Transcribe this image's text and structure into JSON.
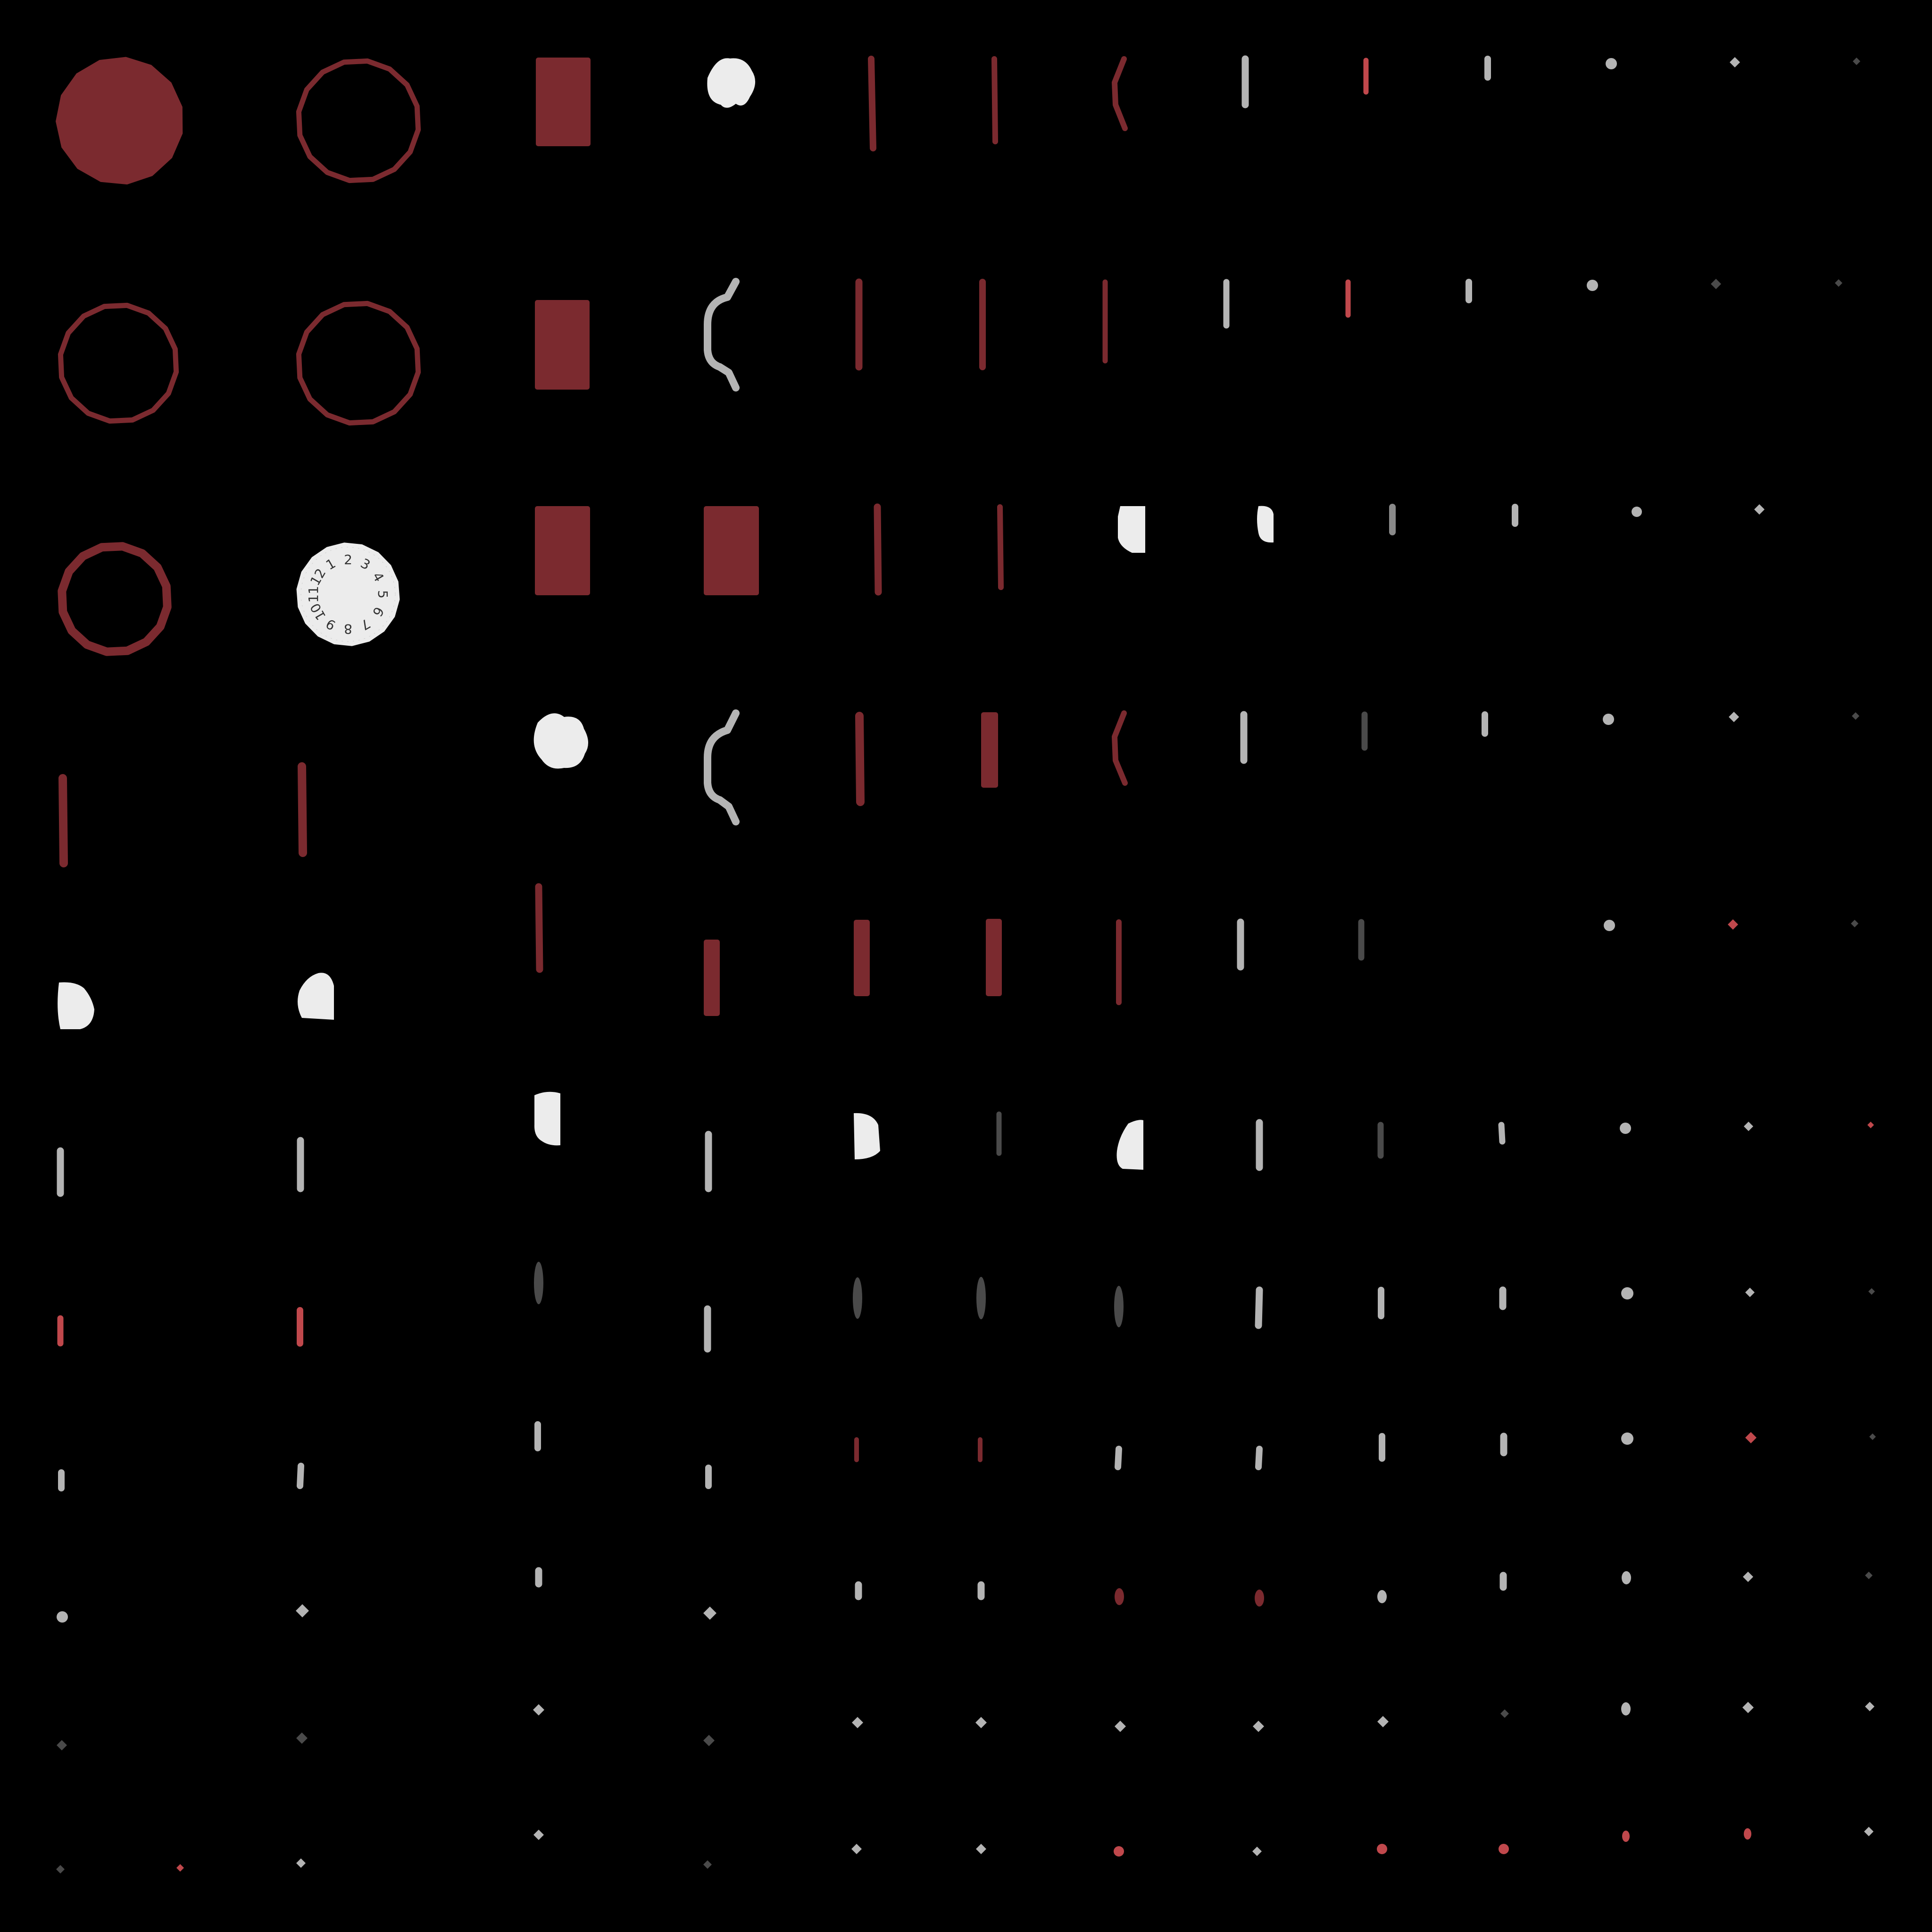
{
  "scene": {
    "description_label": "",
    "background": "#000000"
  },
  "palette": {
    "dark_red": "#7b2a2f",
    "light_red": "#c0484c",
    "white": "#ececec",
    "light_gray": "#b4b4b4",
    "mid_gray": "#8a8a8a",
    "dark_gray": "#4a4a4a"
  },
  "dial": {
    "numbers": [
      "1",
      "2",
      "3",
      "4",
      "5",
      "6",
      "7",
      "8",
      "9",
      "10",
      "11",
      "12"
    ]
  }
}
